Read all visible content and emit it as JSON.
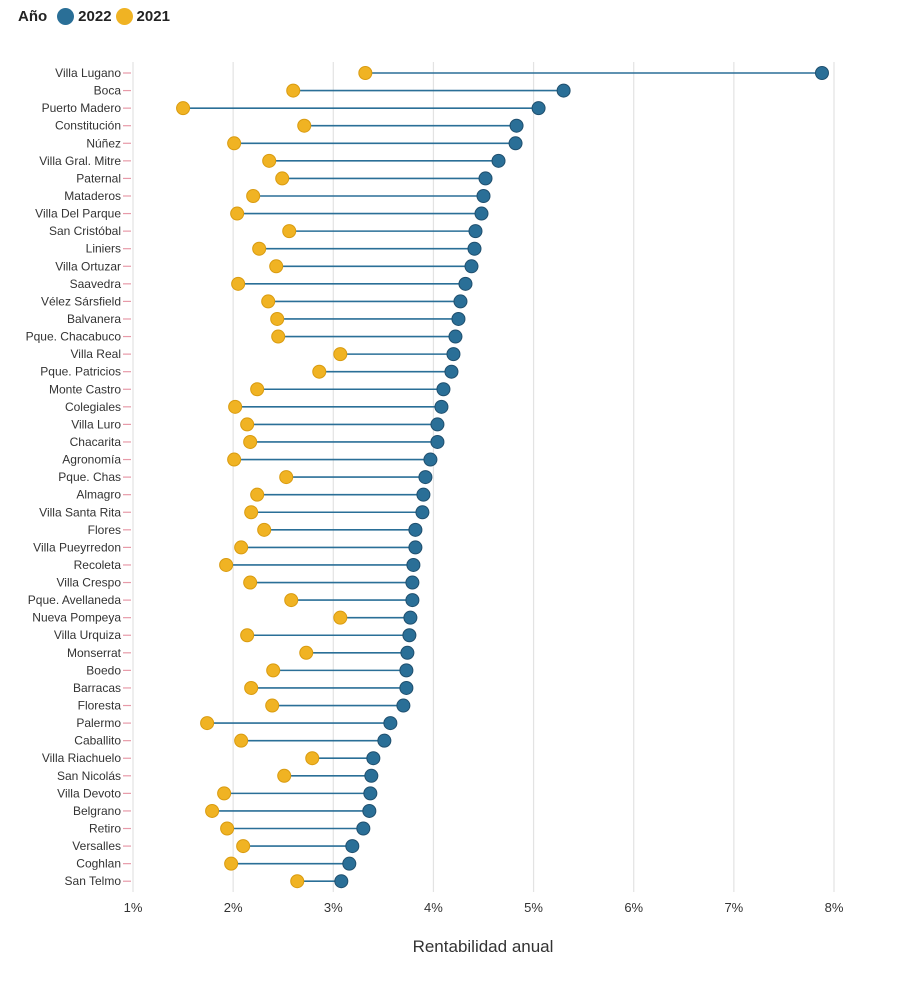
{
  "legend": {
    "title": "Año",
    "items": [
      {
        "label": "2022",
        "color": "#2a6f97"
      },
      {
        "label": "2021",
        "color": "#f0b323"
      }
    ]
  },
  "chart_data": {
    "type": "dumbbell",
    "title": "",
    "xlabel": "Rentabilidad anual",
    "ylabel": "",
    "xlim": [
      1,
      8
    ],
    "x_ticks": [
      1,
      2,
      3,
      4,
      5,
      6,
      7,
      8
    ],
    "x_tick_labels": [
      "1%",
      "2%",
      "3%",
      "4%",
      "5%",
      "6%",
      "7%",
      "8%"
    ],
    "grid": "vertical",
    "legend_position": "top-left",
    "colors": {
      "2022": "#2a6f97",
      "2021": "#f0b323",
      "line": "#2a6f97"
    },
    "categories": [
      "Villa Lugano",
      "Boca",
      "Puerto Madero",
      "Constitución",
      "Núñez",
      "Villa Gral. Mitre",
      "Paternal",
      "Mataderos",
      "Villa Del Parque",
      "San Cristóbal",
      "Liniers",
      "Villa Ortuzar",
      "Saavedra",
      "Vélez Sársfield",
      "Balvanera",
      "Pque. Chacabuco",
      "Villa Real",
      "Pque. Patricios",
      "Monte Castro",
      "Colegiales",
      "Villa Luro",
      "Chacarita",
      "Agronomía",
      "Pque. Chas",
      "Almagro",
      "Villa Santa Rita",
      "Flores",
      "Villa Pueyrredon",
      "Recoleta",
      "Villa Crespo",
      "Pque. Avellaneda",
      "Nueva Pompeya",
      "Villa Urquiza",
      "Monserrat",
      "Boedo",
      "Barracas",
      "Floresta",
      "Palermo",
      "Caballito",
      "Villa Riachuelo",
      "San Nicolás",
      "Villa Devoto",
      "Belgrano",
      "Retiro",
      "Versalles",
      "Coghlan",
      "San Telmo"
    ],
    "series": [
      {
        "name": "2022",
        "values": [
          7.88,
          5.3,
          5.05,
          4.83,
          4.82,
          4.65,
          4.52,
          4.5,
          4.48,
          4.42,
          4.41,
          4.38,
          4.32,
          4.27,
          4.25,
          4.22,
          4.2,
          4.18,
          4.1,
          4.08,
          4.04,
          4.04,
          3.97,
          3.92,
          3.9,
          3.89,
          3.82,
          3.82,
          3.8,
          3.79,
          3.79,
          3.77,
          3.76,
          3.74,
          3.73,
          3.73,
          3.7,
          3.57,
          3.51,
          3.4,
          3.38,
          3.37,
          3.36,
          3.3,
          3.19,
          3.16,
          3.08
        ]
      },
      {
        "name": "2021",
        "values": [
          3.32,
          2.6,
          1.5,
          2.71,
          2.01,
          2.36,
          2.49,
          2.2,
          2.04,
          2.56,
          2.26,
          2.43,
          2.05,
          2.35,
          2.44,
          2.45,
          3.07,
          2.86,
          2.24,
          2.02,
          2.14,
          2.17,
          2.01,
          2.53,
          2.24,
          2.18,
          2.31,
          2.08,
          1.93,
          2.17,
          2.58,
          3.07,
          2.14,
          2.73,
          2.4,
          2.18,
          2.39,
          1.74,
          2.08,
          2.79,
          2.51,
          1.91,
          1.79,
          1.94,
          2.1,
          1.98,
          2.64
        ]
      }
    ]
  }
}
